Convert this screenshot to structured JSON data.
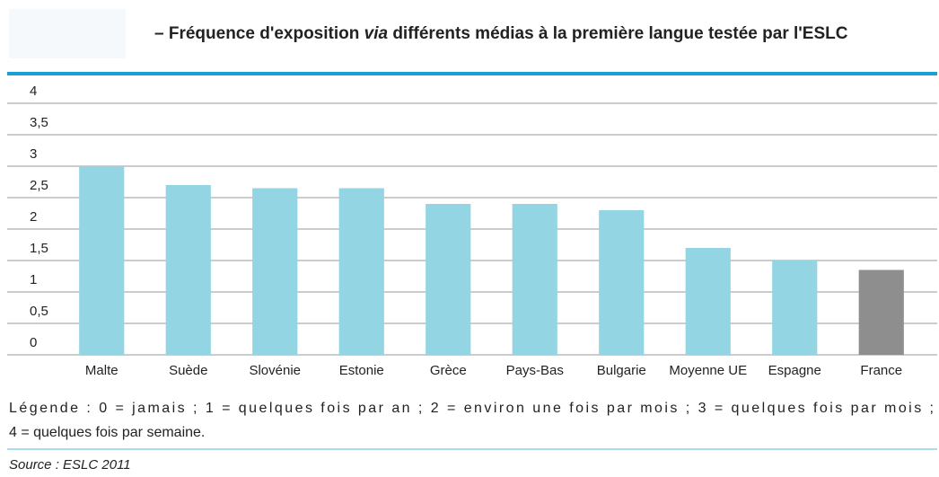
{
  "chart_data": {
    "type": "bar",
    "title": [
      "– Fréquence d'exposition ",
      "via",
      " différents médias à la première langue testée par l'ESLC"
    ],
    "categories": [
      "Malte",
      "Suède",
      "Slovénie",
      "Estonie",
      "Grèce",
      "Pays-Bas",
      "Bulgarie",
      "Moyenne UE",
      "Espagne",
      "France"
    ],
    "values": [
      3.0,
      2.7,
      2.65,
      2.65,
      2.4,
      2.4,
      2.3,
      1.7,
      1.5,
      1.35
    ],
    "colors": [
      "#93d5e2",
      "#93d5e2",
      "#93d5e2",
      "#93d5e2",
      "#93d5e2",
      "#93d5e2",
      "#93d5e2",
      "#93d5e2",
      "#93d5e2",
      "#8e8e8e"
    ],
    "ylim": [
      0,
      4
    ],
    "yticks": [
      0,
      {
        "value": 0.5,
        "label": "0,5"
      },
      1,
      {
        "value": 1.5,
        "label": "1,5"
      },
      2,
      {
        "value": 2.5,
        "label": "2,5"
      },
      3,
      {
        "value": 3.5,
        "label": "3,5"
      },
      4
    ],
    "grid": true,
    "note": [
      "Légende : 0 = jamais ; 1 = quelques fois par an ; 2 = environ une fois par mois ; 3 = quelques fois par mois ;",
      "4 = quelques fois par semaine."
    ],
    "source": "Source : ESLC 2011"
  }
}
